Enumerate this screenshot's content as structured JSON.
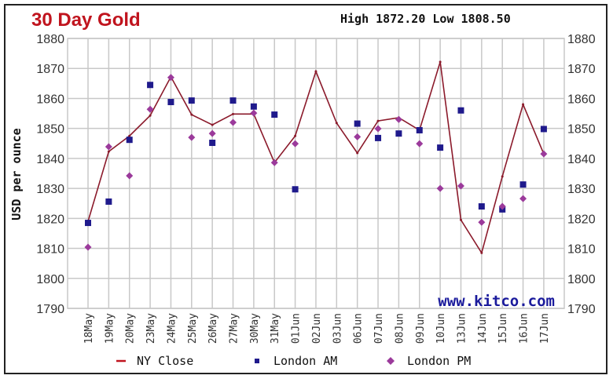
{
  "chart_data": {
    "type": "line",
    "title": "30 Day Gold",
    "subtitle": "High 1872.20 Low 1808.50",
    "ylabel": "USD per ounce",
    "xlabel": "",
    "ylim": [
      1790,
      1880
    ],
    "yticks": [
      1790,
      1800,
      1810,
      1820,
      1830,
      1840,
      1850,
      1860,
      1870,
      1880
    ],
    "grid": true,
    "legend_position": "bottom",
    "watermark": "www.kitco.com",
    "categories": [
      "18May",
      "19May",
      "20May",
      "23May",
      "24May",
      "25May",
      "26May",
      "27May",
      "30May",
      "31May",
      "01Jun",
      "02Jun",
      "03Jun",
      "06Jun",
      "07Jun",
      "08Jun",
      "09Jun",
      "10Jun",
      "13Jun",
      "14Jun",
      "15Jun",
      "16Jun",
      "17Jun"
    ],
    "series": [
      {
        "name": "NY Close",
        "kind": "line",
        "color": "#8b1a2b",
        "values": [
          1819,
          1842.3,
          1847.5,
          1854.3,
          1867.2,
          1854.6,
          1851.2,
          1854.8,
          1854.8,
          1838.6,
          1847.5,
          1869,
          1851.8,
          1841.8,
          1852.5,
          1853.6,
          1849.4,
          1872.2,
          1819.5,
          1808.5,
          1834,
          1858,
          1841.5
        ]
      },
      {
        "name": "London AM",
        "kind": "square",
        "color": "#1f1a8c",
        "values": [
          1818.5,
          1825.6,
          1846.2,
          1864.5,
          1858.8,
          1859.3,
          1845.2,
          1859.3,
          1857.3,
          1854.6,
          1829.7,
          null,
          null,
          1851.6,
          1846.8,
          1848.3,
          1849.4,
          1843.6,
          1856,
          1824,
          1823,
          1831.3,
          1849.8
        ]
      },
      {
        "name": "London PM",
        "kind": "diamond",
        "color": "#9b3a9b",
        "values": [
          1810.4,
          1843.9,
          1834.2,
          1856.4,
          1867,
          1847,
          1848.3,
          1852,
          1855.1,
          1838.6,
          1844.9,
          null,
          null,
          1847.2,
          1849.9,
          1853,
          1844.9,
          1830,
          1830.8,
          1818.7,
          1824,
          1826.6,
          1841.5
        ]
      }
    ]
  }
}
